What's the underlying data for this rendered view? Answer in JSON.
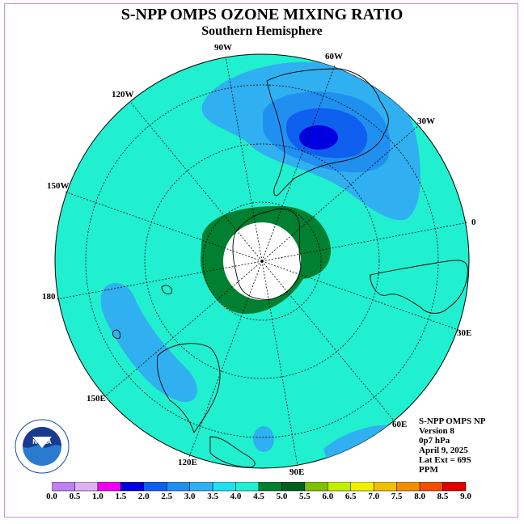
{
  "title": "S-NPP OMPS OZONE MIXING RATIO",
  "subtitle": "Southern Hemisphere",
  "longitude_labels": [
    "90W",
    "60W",
    "30W",
    "0",
    "30E",
    "60E",
    "90E",
    "120E",
    "150E",
    "180",
    "150W",
    "120W"
  ],
  "info": {
    "instrument": "S-NPP OMPS NP",
    "version": "Version 8",
    "level": "0p7 hPa",
    "date": "April 9, 2025",
    "lat_ext": "Lat Ext = 69S",
    "units": "PPM"
  },
  "colorbar": {
    "labels": [
      "0.0",
      "0.5",
      "1.0",
      "1.5",
      "2.0",
      "2.5",
      "3.0",
      "3.5",
      "4.0",
      "4.5",
      "5.0",
      "5.5",
      "6.0",
      "6.5",
      "7.0",
      "7.5",
      "8.0",
      "8.5",
      "9.0"
    ],
    "colors": [
      "#c080f0",
      "#e0b0f0",
      "#f000f0",
      "#0000e0",
      "#1060f0",
      "#2090f0",
      "#30b0f0",
      "#20e0f0",
      "#20f0d0",
      "#008030",
      "#006020",
      "#80c000",
      "#c0f000",
      "#f0f000",
      "#f0c000",
      "#f09000",
      "#f05000",
      "#e00000",
      "#805030"
    ]
  },
  "colors": {
    "background_field": "#20f0d0",
    "polar_vortex": "#008030",
    "high_blue": "#30b0f0",
    "frame": "#d090e0"
  }
}
